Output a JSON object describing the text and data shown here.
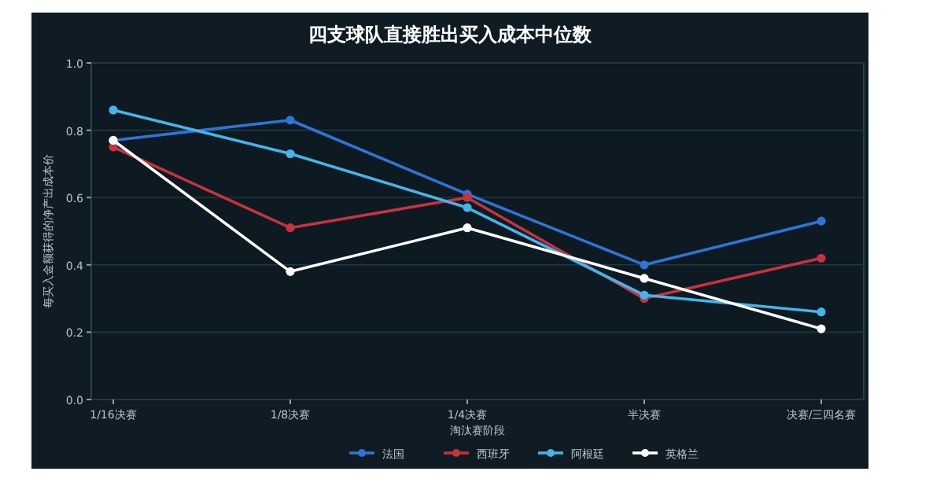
{
  "chart_data": {
    "type": "line",
    "title": "四支球队直接胜出买入成本中位数",
    "xlabel": "淘汰赛阶段",
    "ylabel": "每买入金额获得的净产出成本价",
    "categories": [
      "1/16决赛",
      "1/8决赛",
      "1/4决赛",
      "半决赛",
      "决赛/三四名赛"
    ],
    "series": [
      {
        "name": "法国",
        "color": "#2f74d6",
        "values": [
          0.77,
          0.83,
          0.61,
          0.4,
          0.53
        ]
      },
      {
        "name": "西班牙",
        "color": "#c8323e",
        "values": [
          0.75,
          0.51,
          0.6,
          0.3,
          0.42
        ]
      },
      {
        "name": "阿根廷",
        "color": "#45b4ea",
        "values": [
          0.86,
          0.73,
          0.57,
          0.31,
          0.26
        ]
      },
      {
        "name": "英格兰",
        "color": "#ffffff",
        "values": [
          0.77,
          0.38,
          0.51,
          0.36,
          0.21
        ]
      }
    ],
    "ylim": [
      0,
      1
    ],
    "yticks": [
      {
        "value": 0,
        "label": "0.0"
      },
      {
        "value": 0.2,
        "label": "0.2"
      },
      {
        "value": 0.4,
        "label": "0.4"
      },
      {
        "value": 0.6,
        "label": "0.6"
      },
      {
        "value": 0.8,
        "label": "0.8"
      },
      {
        "value": 1,
        "label": "1.0"
      }
    ],
    "grid": "y",
    "legend": "bottom",
    "marker": "circle",
    "line_style": "solid"
  }
}
